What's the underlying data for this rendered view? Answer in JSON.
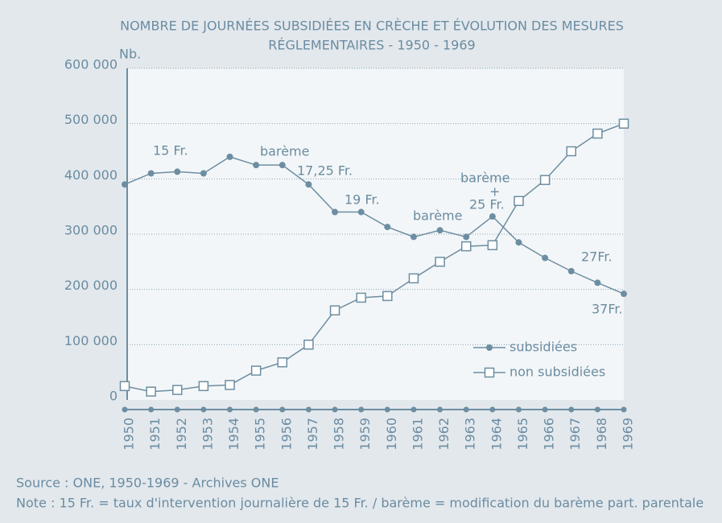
{
  "chart_data": {
    "type": "line",
    "title": [
      "NOMBRE DE JOURNÉES SUBSIDIÉES EN CRÈCHE ET ÉVOLUTION DES MESURES",
      "RÉGLEMENTAIRES - 1950 - 1969"
    ],
    "y_label": "Nb.",
    "categories": [
      "1950",
      "1951",
      "1952",
      "1953",
      "1954",
      "1955",
      "1956",
      "1957",
      "1958",
      "1959",
      "1960",
      "1961",
      "1962",
      "1963",
      "1964",
      "1965",
      "1966",
      "1967",
      "1968",
      "1969"
    ],
    "series": [
      {
        "name": "subsidiées",
        "color": "#6d8ea2",
        "marker": "circle",
        "values": [
          390000,
          410000,
          413000,
          410000,
          440000,
          425000,
          425000,
          390000,
          340000,
          340000,
          313000,
          295000,
          307000,
          295000,
          332000,
          285000,
          257000,
          233000,
          212000,
          192000
        ]
      },
      {
        "name": "non subsidiées",
        "color": "#6d8ea2",
        "marker": "square",
        "values": [
          25000,
          15000,
          18000,
          25000,
          27000,
          53000,
          68000,
          100000,
          162000,
          185000,
          188000,
          220000,
          250000,
          278000,
          280000,
          360000,
          398000,
          450000,
          482000,
          500000
        ]
      }
    ],
    "ylim": [
      0,
      600000
    ],
    "yticks": [
      0,
      {
        "value": 100000,
        "label": "100 000"
      },
      {
        "value": 200000,
        "label": "200 000"
      },
      {
        "value": 300000,
        "label": "300 000"
      },
      {
        "value": 400000,
        "label": "400 000"
      },
      {
        "value": 500000,
        "label": "500 000"
      },
      {
        "value": 600000,
        "label": "600 000"
      }
    ],
    "grid": true,
    "annotations": [
      "15 Fr.",
      "barème",
      "17,25 Fr.",
      "19 Fr.",
      "barème",
      "barème",
      "+",
      "25 Fr.",
      "27Fr.",
      "37Fr."
    ],
    "source": "Source : ONE, 1950-1969 - Archives ONE",
    "note": "Note : 15 Fr. = taux d'intervention journalière de 15 Fr. / barème = modification du barème part. parentale"
  }
}
